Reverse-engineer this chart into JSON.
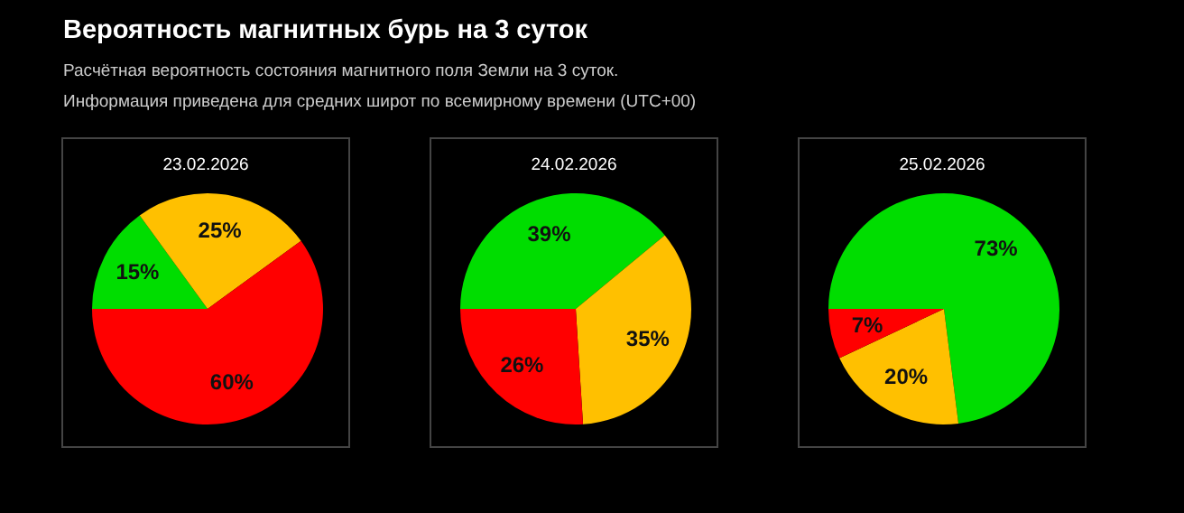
{
  "chart_data": [
    {
      "type": "pie",
      "title": "23.02.2026",
      "annotations": [
        "Вероятность магнитных бурь на 3 суток",
        "Расчётная вероятность состояния магнитного поля Земли на 3 суток.",
        "Информация приведена для средних широт по всемирному времени (UTC+00)"
      ],
      "categories": [
        null,
        null,
        null
      ],
      "values": [
        15,
        25,
        60
      ],
      "colors": [
        "#00dd00",
        "#ffc000",
        "#ff0000"
      ],
      "value_labels": [
        "15%",
        "25%",
        "60%"
      ]
    },
    {
      "type": "pie",
      "title": "24.02.2026",
      "categories": [
        null,
        null,
        null
      ],
      "values": [
        39,
        35,
        26
      ],
      "colors": [
        "#00dd00",
        "#ffc000",
        "#ff0000"
      ],
      "value_labels": [
        "39%",
        "35%",
        "26%"
      ]
    },
    {
      "type": "pie",
      "title": "25.02.2026",
      "categories": [
        null,
        null,
        null
      ],
      "values": [
        73,
        20,
        7
      ],
      "colors": [
        "#00dd00",
        "#ffc000",
        "#ff0000"
      ],
      "value_labels": [
        "73%",
        "20%",
        "7%"
      ]
    }
  ]
}
